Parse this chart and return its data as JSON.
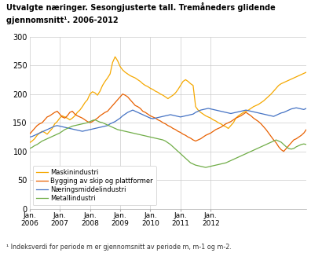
{
  "title_line1": "Utvalgte næringer. Sesongjusterte tall. Tremåneders glidende",
  "title_line2": "gjennomsnitt¹. 2006-2012",
  "footnote": "¹ Indeksverdi for periode m er gjennomsnitt av periode m, m-1 og m-2.",
  "ylim": [
    0,
    300
  ],
  "yticks": [
    0,
    50,
    100,
    150,
    200,
    250,
    300
  ],
  "xtick_labels": [
    "Jan.\n2006",
    "Jan.\n2007",
    "Jan.\n2008",
    "Jan.\n2009",
    "Jan.\n2010",
    "Jan.\n2011",
    "Jan.\n2012"
  ],
  "legend": [
    "Maskinindustri",
    "Bygging av skip og plattformer",
    "Næringsmiddelindustri",
    "Metallindustri"
  ],
  "colors": [
    "#f5a800",
    "#e86000",
    "#4472c4",
    "#70ad47"
  ],
  "background_color": "#ffffff",
  "grid_color": "#cccccc",
  "maskinindustri": [
    115,
    118,
    122,
    128,
    132,
    135,
    133,
    130,
    135,
    140,
    148,
    152,
    158,
    162,
    160,
    158,
    155,
    158,
    162,
    168,
    172,
    178,
    185,
    190,
    200,
    204,
    202,
    198,
    205,
    215,
    222,
    228,
    235,
    255,
    265,
    258,
    248,
    242,
    238,
    235,
    232,
    230,
    228,
    225,
    222,
    218,
    215,
    213,
    210,
    208,
    205,
    203,
    200,
    198,
    195,
    192,
    195,
    198,
    202,
    208,
    215,
    222,
    225,
    222,
    218,
    215,
    178,
    172,
    168,
    165,
    162,
    160,
    158,
    155,
    153,
    150,
    148,
    145,
    143,
    140,
    145,
    150,
    158,
    162,
    165,
    168,
    170,
    172,
    175,
    178,
    180,
    182,
    185,
    188,
    192,
    196,
    200,
    205,
    210,
    215,
    218,
    220,
    222,
    224,
    226,
    228,
    230,
    232,
    234,
    236,
    238
  ],
  "bygging": [
    130,
    135,
    140,
    145,
    148,
    150,
    155,
    160,
    162,
    165,
    168,
    170,
    165,
    160,
    158,
    162,
    168,
    170,
    165,
    162,
    160,
    158,
    155,
    152,
    150,
    152,
    155,
    158,
    162,
    165,
    168,
    170,
    175,
    180,
    185,
    190,
    195,
    200,
    198,
    195,
    190,
    185,
    180,
    178,
    175,
    170,
    168,
    165,
    162,
    160,
    158,
    155,
    153,
    150,
    148,
    145,
    143,
    140,
    138,
    135,
    133,
    130,
    128,
    125,
    123,
    120,
    118,
    120,
    122,
    125,
    128,
    130,
    132,
    135,
    138,
    140,
    142,
    145,
    148,
    150,
    152,
    155,
    158,
    160,
    162,
    165,
    168,
    165,
    162,
    158,
    155,
    152,
    148,
    143,
    138,
    132,
    126,
    120,
    115,
    108,
    103,
    100,
    105,
    110,
    115,
    120,
    122,
    125,
    128,
    132,
    138,
    145,
    152
  ],
  "naeringsmiddel": [
    125,
    126,
    128,
    130,
    132,
    134,
    136,
    138,
    140,
    142,
    144,
    145,
    144,
    143,
    142,
    141,
    140,
    139,
    138,
    137,
    136,
    135,
    136,
    137,
    138,
    139,
    140,
    141,
    142,
    143,
    144,
    145,
    148,
    150,
    152,
    155,
    158,
    162,
    165,
    168,
    170,
    172,
    170,
    168,
    166,
    164,
    162,
    160,
    158,
    157,
    158,
    159,
    160,
    161,
    162,
    163,
    164,
    163,
    162,
    161,
    160,
    161,
    162,
    163,
    164,
    165,
    168,
    170,
    172,
    173,
    174,
    175,
    174,
    173,
    172,
    171,
    170,
    169,
    168,
    167,
    166,
    167,
    168,
    169,
    170,
    171,
    172,
    171,
    170,
    169,
    168,
    167,
    166,
    165,
    164,
    163,
    162,
    161,
    163,
    165,
    167,
    168,
    170,
    172,
    174,
    175,
    176,
    175,
    174,
    173,
    175,
    177,
    178
  ],
  "metallindustri": [
    105,
    107,
    110,
    112,
    115,
    118,
    120,
    122,
    124,
    126,
    128,
    130,
    132,
    135,
    138,
    140,
    142,
    144,
    145,
    146,
    147,
    148,
    149,
    150,
    152,
    154,
    155,
    153,
    151,
    150,
    148,
    146,
    144,
    142,
    140,
    138,
    137,
    136,
    135,
    134,
    133,
    132,
    131,
    130,
    129,
    128,
    127,
    126,
    125,
    124,
    123,
    122,
    121,
    120,
    118,
    115,
    112,
    108,
    104,
    100,
    96,
    92,
    88,
    84,
    80,
    78,
    76,
    75,
    74,
    73,
    72,
    73,
    74,
    75,
    76,
    77,
    78,
    79,
    80,
    82,
    84,
    86,
    88,
    90,
    92,
    94,
    96,
    98,
    100,
    102,
    104,
    106,
    108,
    110,
    112,
    114,
    116,
    118,
    120,
    118,
    116,
    112,
    108,
    105,
    104,
    105,
    108,
    110,
    112,
    113,
    112,
    110,
    108,
    106,
    103,
    101,
    100
  ]
}
